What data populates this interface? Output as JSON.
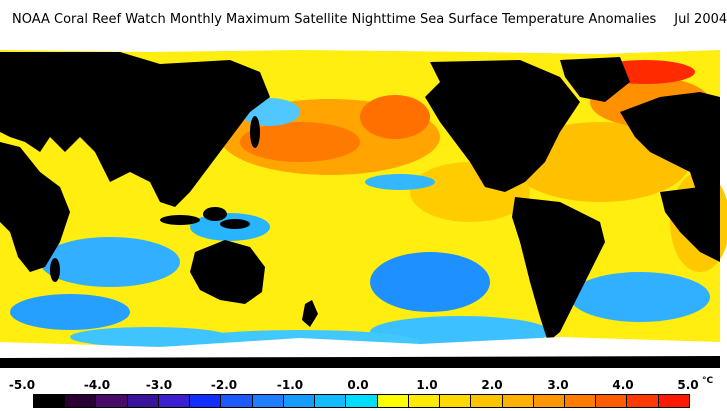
{
  "title": "NOAA Coral Reef Watch Monthly Maximum Satellite Nighttime Sea Surface Temperature Anomalies",
  "date": "Jul 2004",
  "legend": {
    "labels": [
      "-5.0",
      "-4.0",
      "-3.0",
      "-2.0",
      "-1.0",
      "0.0",
      "1.0",
      "2.0",
      "3.0",
      "4.0",
      "5.0"
    ],
    "unit": "°C",
    "colors": [
      "#000000",
      "#2a0033",
      "#4a0a6a",
      "#3a139c",
      "#3b1fd0",
      "#1130ff",
      "#1a5aff",
      "#1d7eff",
      "#169cff",
      "#12bcff",
      "#00ddff",
      "#ffff00",
      "#ffea00",
      "#ffd800",
      "#ffc400",
      "#ffb000",
      "#ff9800",
      "#ff7c00",
      "#ff5c00",
      "#ff3a00",
      "#ff1a00"
    ]
  },
  "map": {
    "land_color": "#000000",
    "ice_color": "#ffffff",
    "ocean_base_color": "#ffee10"
  }
}
